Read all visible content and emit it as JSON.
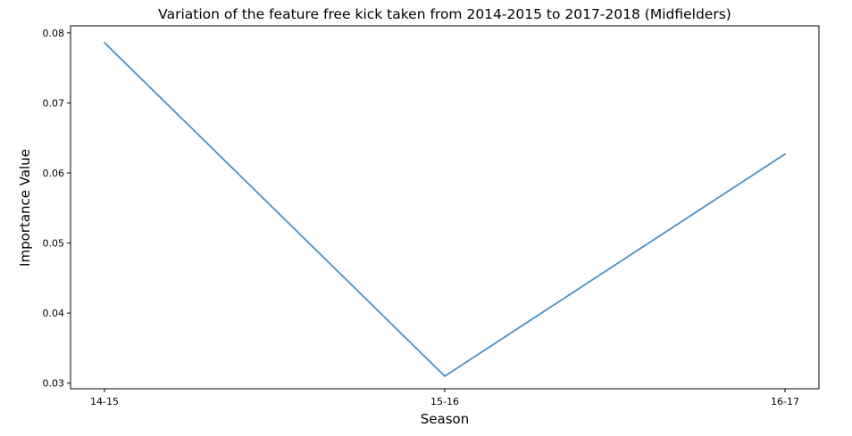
{
  "chart_data": {
    "type": "line",
    "title": "Variation of the feature free kick taken from 2014-2015 to 2017-2018 (Midfielders)",
    "xlabel": "Season",
    "ylabel": "Importance Value",
    "categories": [
      "14-15",
      "15-16",
      "16-17"
    ],
    "series": [
      {
        "values": [
          0.0786,
          0.031,
          0.0627
        ]
      }
    ],
    "ylim": [
      0.0292,
      0.081
    ],
    "yticks": [
      0.03,
      0.04,
      0.05,
      0.06,
      0.07,
      0.08
    ],
    "ytick_labels": [
      "0.03",
      "0.04",
      "0.05",
      "0.06",
      "0.07",
      "0.08"
    ],
    "grid": false,
    "line_color": "#4a90c4"
  }
}
